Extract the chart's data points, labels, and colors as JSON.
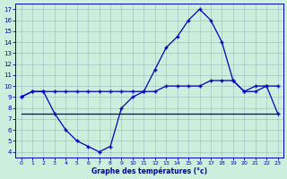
{
  "title": "Graphe des températures (°c)",
  "background_color": "#cceedd",
  "line_color": "#0000bb",
  "x_hours": [
    0,
    1,
    2,
    3,
    4,
    5,
    6,
    7,
    8,
    9,
    10,
    11,
    12,
    13,
    14,
    15,
    16,
    17,
    18,
    19,
    20,
    21,
    22,
    23
  ],
  "curve1": [
    9.0,
    9.5,
    9.5,
    7.5,
    6.0,
    5.0,
    4.5,
    4.0,
    4.5,
    8.0,
    9.0,
    9.5,
    11.5,
    13.5,
    14.5,
    16.0,
    17.0,
    16.0,
    14.0,
    10.5,
    9.5,
    10.0,
    10.0,
    7.5
  ],
  "curve2": [
    9.0,
    9.5,
    9.5,
    9.5,
    9.5,
    9.5,
    9.5,
    9.5,
    9.5,
    9.5,
    9.5,
    9.5,
    9.5,
    10.0,
    10.0,
    10.0,
    10.0,
    10.5,
    10.5,
    10.5,
    9.5,
    9.5,
    10.0,
    10.0
  ],
  "curve3": [
    7.5,
    7.5,
    7.5,
    7.5,
    7.5,
    7.5,
    7.5,
    7.5,
    7.5,
    7.5,
    7.5,
    7.5,
    7.5,
    7.5,
    7.5,
    7.5,
    7.5,
    7.5,
    7.5,
    7.5,
    7.5,
    7.5,
    7.5,
    7.5
  ],
  "ylim": [
    3.5,
    17.5
  ],
  "xlim": [
    -0.5,
    23.5
  ],
  "yticks": [
    4,
    5,
    6,
    7,
    8,
    9,
    10,
    11,
    12,
    13,
    14,
    15,
    16,
    17
  ],
  "xticks": [
    0,
    1,
    2,
    3,
    4,
    5,
    6,
    7,
    8,
    9,
    10,
    11,
    12,
    13,
    14,
    15,
    16,
    17,
    18,
    19,
    20,
    21,
    22,
    23
  ],
  "grid_color": "#99bbbb",
  "grid_color2": "#aacccc"
}
